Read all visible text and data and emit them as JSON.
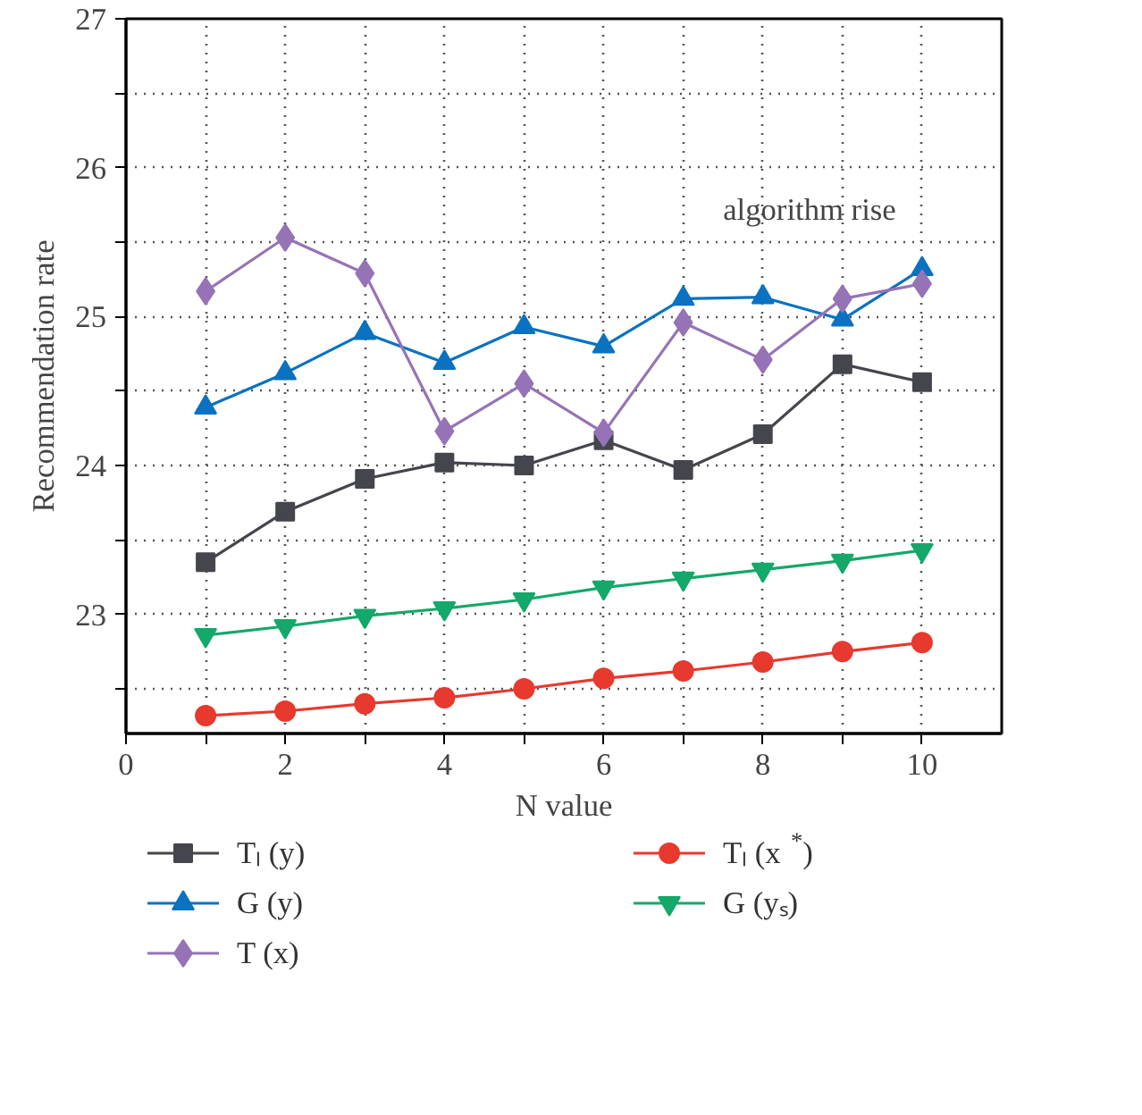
{
  "chart_data": {
    "type": "line",
    "xlabel": "N value",
    "ylabel": "Recommendation rate",
    "annotations": [
      "algorithm rise"
    ],
    "x": [
      1,
      2,
      3,
      4,
      5,
      6,
      7,
      8,
      9,
      10
    ],
    "xlim": [
      0,
      11
    ],
    "ylim": [
      22.2,
      27
    ],
    "xticks": [
      0,
      {
        "value": 1,
        "label": null
      },
      2,
      {
        "value": 3,
        "label": null
      },
      4,
      {
        "value": 5,
        "label": null
      },
      6,
      {
        "value": 7,
        "label": null
      },
      8,
      {
        "value": 9,
        "label": null
      },
      10
    ],
    "yticks": [
      {
        "value": 22.5,
        "label": null
      },
      23,
      {
        "value": 23.5,
        "label": null
      },
      24,
      {
        "value": 24.5,
        "label": null
      },
      25,
      {
        "value": 25.5,
        "label": null
      },
      26,
      {
        "value": 26.5,
        "label": null
      },
      27
    ],
    "grid": true,
    "legend": "bottom",
    "line_style": "solid",
    "series": [
      {
        "name": "Tₗ (y)",
        "color": "#45454d",
        "marker": "square",
        "values": [
          23.35,
          23.69,
          23.91,
          24.02,
          24.0,
          24.17,
          23.97,
          24.21,
          24.68,
          24.56
        ]
      },
      {
        "name": "G (y)",
        "color": "#0a72c0",
        "marker": "triangle",
        "values": [
          24.39,
          24.62,
          24.89,
          24.69,
          24.93,
          24.8,
          25.12,
          25.13,
          24.98,
          25.32
        ]
      },
      {
        "name": "T (x)",
        "color": "#9673b6",
        "marker": "diamond",
        "values": [
          25.17,
          25.53,
          25.29,
          24.23,
          24.55,
          24.22,
          24.96,
          24.71,
          25.12,
          25.22
        ]
      },
      {
        "name": "Tₗ (x$^{*}$)",
        "color": "#e8392e",
        "marker": "circle",
        "values": [
          22.32,
          22.35,
          22.4,
          22.44,
          22.5,
          22.57,
          22.62,
          22.68,
          22.75,
          22.81
        ]
      },
      {
        "name": "G (yₛ)",
        "color": "#14a86a",
        "marker": "triangle",
        "values": [
          22.86,
          22.92,
          22.99,
          23.04,
          23.1,
          23.18,
          23.24,
          23.3,
          23.36,
          23.43
        ]
      }
    ]
  }
}
